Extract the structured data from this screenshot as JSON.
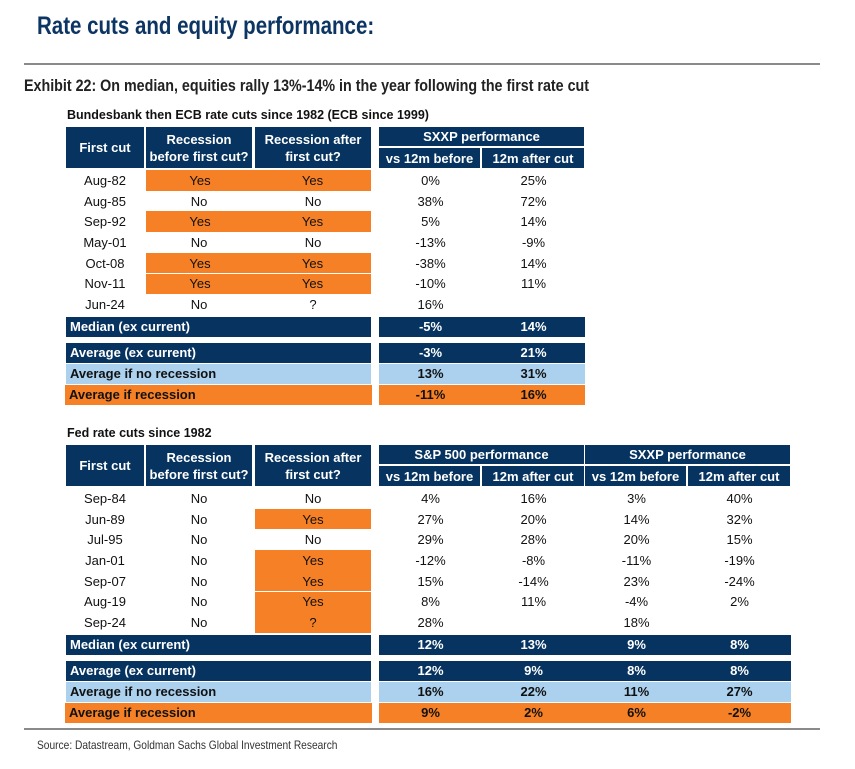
{
  "title": "Rate cuts and equity performance:",
  "exhibit": "Exhibit 22: On median, equities rally 13%-14% in the year following the first rate cut",
  "source": "Source: Datastream, Goldman Sachs Global Investment Research",
  "colors": {
    "navy": "#06335f",
    "orange": "#f58025",
    "light_blue": "#abd1ef"
  },
  "ecb": {
    "subtitle": "Bundesbank then ECB rate cuts since 1982 (ECB since 1999)",
    "headers": {
      "first_cut": "First cut",
      "rec_before": "Recession before first cut?",
      "rec_after": "Recession after first cut?",
      "sxxp_group": "SXXP performance",
      "vs_before": "vs 12m before",
      "after_cut": "12m after cut"
    },
    "rows": [
      {
        "date": "Aug-82",
        "before": "Yes",
        "after": "Yes",
        "sx_b": "0%",
        "sx_a": "25%"
      },
      {
        "date": "Aug-85",
        "before": "No",
        "after": "No",
        "sx_b": "38%",
        "sx_a": "72%"
      },
      {
        "date": "Sep-92",
        "before": "Yes",
        "after": "Yes",
        "sx_b": "5%",
        "sx_a": "14%"
      },
      {
        "date": "May-01",
        "before": "No",
        "after": "No",
        "sx_b": "-13%",
        "sx_a": "-9%"
      },
      {
        "date": "Oct-08",
        "before": "Yes",
        "after": "Yes",
        "sx_b": "-38%",
        "sx_a": "14%"
      },
      {
        "date": "Nov-11",
        "before": "Yes",
        "after": "Yes",
        "sx_b": "-10%",
        "sx_a": "11%"
      },
      {
        "date": "Jun-24",
        "before": "No",
        "after": "?",
        "sx_b": "16%",
        "sx_a": ""
      }
    ],
    "summary": [
      {
        "label": "Median (ex current)",
        "sx_b": "-5%",
        "sx_a": "14%",
        "style": "dark"
      },
      {
        "label": "Average (ex current)",
        "sx_b": "-3%",
        "sx_a": "21%",
        "style": "dark"
      },
      {
        "label": "Average if no recession",
        "sx_b": "13%",
        "sx_a": "31%",
        "style": "light"
      },
      {
        "label": "Average if recession",
        "sx_b": "-11%",
        "sx_a": "16%",
        "style": "org"
      }
    ]
  },
  "fed": {
    "subtitle": "Fed rate cuts since 1982",
    "headers": {
      "first_cut": "First cut",
      "rec_before": "Recession before first cut?",
      "rec_after": "Recession after first cut?",
      "sp_group": "S&P 500 performance",
      "sxxp_group": "SXXP performance",
      "vs_before": "vs 12m before",
      "after_cut": "12m after cut"
    },
    "rows": [
      {
        "date": "Sep-84",
        "before": "No",
        "after": "No",
        "sp_b": "4%",
        "sp_a": "16%",
        "sx_b": "3%",
        "sx_a": "40%"
      },
      {
        "date": "Jun-89",
        "before": "No",
        "after": "Yes",
        "sp_b": "27%",
        "sp_a": "20%",
        "sx_b": "14%",
        "sx_a": "32%"
      },
      {
        "date": "Jul-95",
        "before": "No",
        "after": "No",
        "sp_b": "29%",
        "sp_a": "28%",
        "sx_b": "20%",
        "sx_a": "15%"
      },
      {
        "date": "Jan-01",
        "before": "No",
        "after": "Yes",
        "sp_b": "-12%",
        "sp_a": "-8%",
        "sx_b": "-11%",
        "sx_a": "-19%"
      },
      {
        "date": "Sep-07",
        "before": "No",
        "after": "Yes",
        "sp_b": "15%",
        "sp_a": "-14%",
        "sx_b": "23%",
        "sx_a": "-24%"
      },
      {
        "date": "Aug-19",
        "before": "No",
        "after": "Yes",
        "sp_b": "8%",
        "sp_a": "11%",
        "sx_b": "-4%",
        "sx_a": "2%"
      },
      {
        "date": "Sep-24",
        "before": "No",
        "after": "?",
        "sp_b": "28%",
        "sp_a": "",
        "sx_b": "18%",
        "sx_a": ""
      }
    ],
    "summary": [
      {
        "label": "Median (ex current)",
        "sp_b": "12%",
        "sp_a": "13%",
        "sx_b": "9%",
        "sx_a": "8%",
        "style": "dark"
      },
      {
        "label": "Average (ex current)",
        "sp_b": "12%",
        "sp_a": "9%",
        "sx_b": "8%",
        "sx_a": "8%",
        "style": "dark"
      },
      {
        "label": "Average if no recession",
        "sp_b": "16%",
        "sp_a": "22%",
        "sx_b": "11%",
        "sx_a": "27%",
        "style": "light"
      },
      {
        "label": "Average if recession",
        "sp_b": "9%",
        "sp_a": "2%",
        "sx_b": "6%",
        "sx_a": "-2%",
        "style": "org"
      }
    ]
  }
}
